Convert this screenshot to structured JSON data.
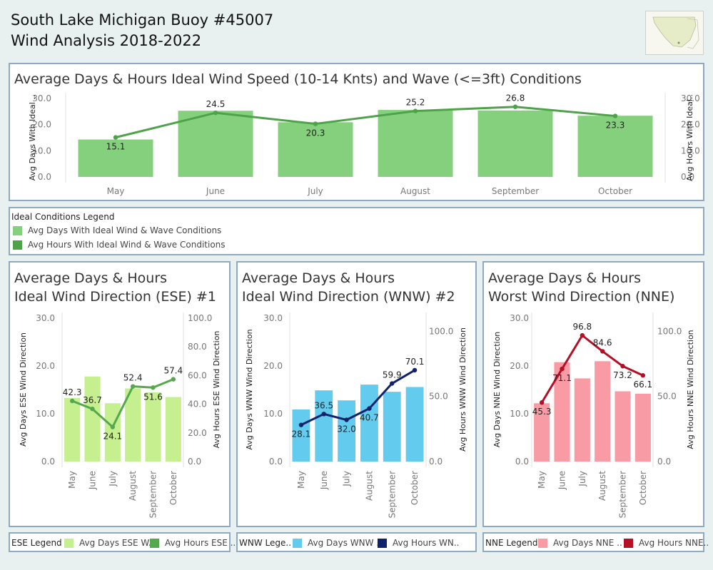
{
  "header": {
    "title_line1": "South Lake Michigan Buoy #45007",
    "title_line2": "Wind Analysis 2018-2022"
  },
  "map_thumbnail": {
    "icon": "map-thumbnail"
  },
  "colors": {
    "top_bar": "#85d07c",
    "top_line": "#4ea34a",
    "ese_bar": "#c6ef8f",
    "ese_line": "#56a84d",
    "wnw_bar": "#63cbee",
    "wnw_line": "#10226b",
    "nne_bar": "#f89ba4",
    "nne_line": "#b50f26"
  },
  "top_chart": {
    "title": "Average Days & Hours Ideal Wind Speed (10-14 Knts) and Wave (<=3ft) Conditions"
  },
  "ideal_legend": {
    "title": "Ideal Conditions Legend",
    "items": [
      "Avg Days With Ideal Wind & Wave Conditions",
      "Avg Hours With Ideal Wind & Wave Conditions"
    ]
  },
  "ese_panel": {
    "title_line1": "Average Days & Hours",
    "title_line2": "Ideal Wind Direction (ESE) #1"
  },
  "wnw_panel": {
    "title_line1": "Average Days & Hours",
    "title_line2": "Ideal Wind Direction (WNW) #2"
  },
  "nne_panel": {
    "title_line1": "Average Days & Hours",
    "title_line2": "Worst Wind Direction (NNE)"
  },
  "ese_legend": {
    "title": "ESE Legend",
    "days": "Avg Days ESE W..",
    "hours": "Avg Hours ESE .."
  },
  "wnw_legend": {
    "title": "WNW Lege..",
    "days": "Avg Days WNW ..",
    "hours": "Avg Hours WN.."
  },
  "nne_legend": {
    "title": "NNE Legend",
    "days": "Avg Days NNE ..",
    "hours": "Avg Hours NNE.."
  },
  "chart_data": [
    {
      "id": "top",
      "type": "bar",
      "categories": [
        "May",
        "June",
        "July",
        "August",
        "September",
        "October"
      ],
      "series": [
        {
          "name": "Avg Days With Ideal Wind & Wave Conditions",
          "type": "bar",
          "axis": "left",
          "values": [
            14.3,
            25.3,
            20.9,
            25.6,
            25.4,
            23.4
          ]
        },
        {
          "name": "Avg Hours With Ideal Wind & Wave Conditions",
          "type": "line",
          "axis": "right",
          "values": [
            15.1,
            24.5,
            20.3,
            25.2,
            26.8,
            23.3
          ],
          "labels": [
            "15.1",
            "24.5",
            "20.3",
            "25.2",
            "26.8",
            "23.3"
          ]
        }
      ],
      "ylabel_left": "Avg Days With Ideal ..",
      "ylabel_right": "Avg Hours With Ideal..",
      "ylim_left": [
        0,
        30
      ],
      "ylim_right": [
        0,
        30
      ],
      "yticks_left": [
        "0.0",
        "10.0",
        "20.0",
        "30.0"
      ],
      "yticks_right": [
        "0.0",
        "10.0",
        "20.0",
        "30.0"
      ]
    },
    {
      "id": "ese",
      "type": "bar",
      "categories": [
        "May",
        "June",
        "July",
        "August",
        "September",
        "October"
      ],
      "series": [
        {
          "name": "Avg Days ESE Wind Direction",
          "type": "bar",
          "axis": "left",
          "values": [
            13.3,
            17.8,
            12.2,
            15.3,
            14.5,
            13.5
          ]
        },
        {
          "name": "Avg Hours ESE Wind Direction",
          "type": "line",
          "axis": "right",
          "values": [
            42.3,
            36.7,
            24.1,
            52.4,
            51.6,
            57.4
          ],
          "labels": [
            "42.3",
            "36.7",
            "24.1",
            "52.4",
            "51.6",
            "57.4"
          ]
        }
      ],
      "ylabel_left": "Avg Days ESE Wind Direction",
      "ylabel_right": "Avg Hours ESE Wind Direction",
      "ylim_left": [
        0,
        30
      ],
      "ylim_right": [
        0,
        100
      ],
      "yticks_left": [
        "0.0",
        "10.0",
        "20.0",
        "30.0"
      ],
      "yticks_right": [
        "0.0",
        "20.0",
        "40.0",
        "60.0",
        "80.0",
        "100.0"
      ]
    },
    {
      "id": "wnw",
      "type": "bar",
      "categories": [
        "May",
        "June",
        "July",
        "August",
        "September",
        "October"
      ],
      "series": [
        {
          "name": "Avg Days WNW Wind Direction",
          "type": "bar",
          "axis": "left",
          "values": [
            10.9,
            14.9,
            12.8,
            16.1,
            14.6,
            15.6
          ]
        },
        {
          "name": "Avg Hours WNW Wind Direction",
          "type": "line",
          "axis": "right",
          "values": [
            28.1,
            36.5,
            32.0,
            40.7,
            59.9,
            70.1
          ],
          "labels": [
            "28.1",
            "36.5",
            "32.0",
            "40.7",
            "59.9",
            "70.1"
          ]
        }
      ],
      "ylabel_left": "Avg Days WNW Wind Direction",
      "ylabel_right": "Avg Hours WNW Wind Direction",
      "ylim_left": [
        0,
        30
      ],
      "ylim_right": [
        0,
        110
      ],
      "yticks_left": [
        "0.0",
        "10.0",
        "20.0",
        "30.0"
      ],
      "yticks_right": [
        "0.0",
        "50.0",
        "100.0"
      ]
    },
    {
      "id": "nne",
      "type": "bar",
      "categories": [
        "May",
        "June",
        "July",
        "August",
        "September",
        "October"
      ],
      "series": [
        {
          "name": "Avg Days NNE Wind Direction",
          "type": "bar",
          "axis": "left",
          "values": [
            12.2,
            20.8,
            17.4,
            21.0,
            14.7,
            14.2
          ]
        },
        {
          "name": "Avg Hours NNE Wind Direction",
          "type": "line",
          "axis": "right",
          "values": [
            45.3,
            71.1,
            96.8,
            84.6,
            73.2,
            66.1
          ],
          "labels": [
            "45.3",
            "71.1",
            "96.8",
            "84.6",
            "73.2",
            "66.1"
          ]
        }
      ],
      "ylabel_left": "Avg Days NNE Wind Direction",
      "ylabel_right": "Avg Hours NNE Wind Direction",
      "ylim_left": [
        0,
        30
      ],
      "ylim_right": [
        0,
        110
      ],
      "yticks_left": [
        "0.0",
        "10.0",
        "20.0",
        "30.0"
      ],
      "yticks_right": [
        "0.0",
        "50.0",
        "100.0"
      ]
    }
  ]
}
